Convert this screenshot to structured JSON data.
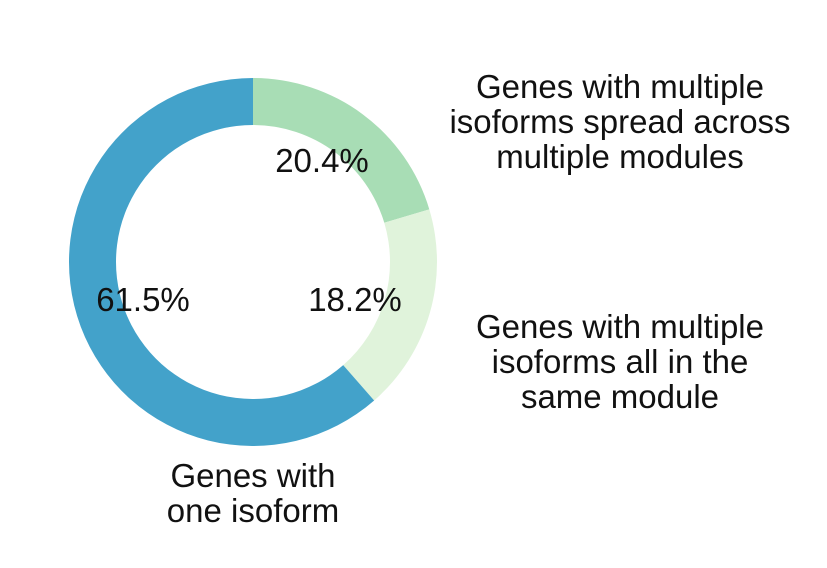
{
  "chart_data": {
    "type": "pie",
    "style": "donut",
    "slices": [
      {
        "label": "Genes with multiple isoforms spread across multiple modules",
        "label_lines": [
          "Genes with multiple",
          "isoforms spread across",
          "multiple modules"
        ],
        "value": 20.4,
        "value_label": "20.4%",
        "color": "#a8ddb5"
      },
      {
        "label": "Genes with multiple isoforms all in the same module",
        "label_lines": [
          "Genes with multiple",
          "isoforms all in the",
          "same module"
        ],
        "value": 18.2,
        "value_label": "18.2%",
        "color": "#e0f3db"
      },
      {
        "label": "Genes with one isoform",
        "label_lines": [
          "Genes with",
          "one isoform"
        ],
        "value": 61.5,
        "value_label": "61.5%",
        "color": "#43a2ca"
      }
    ],
    "start_angle": "12 o'clock",
    "direction": "clockwise",
    "legend": "none"
  }
}
